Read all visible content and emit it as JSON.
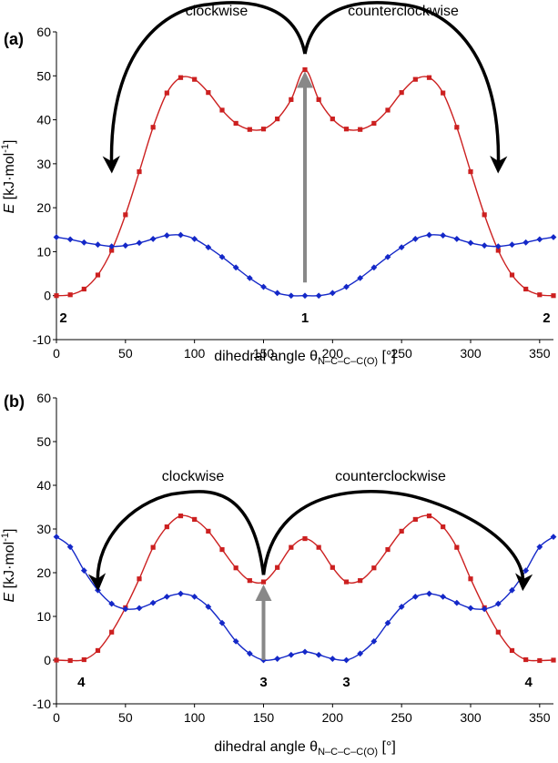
{
  "chart_data": [
    {
      "type": "line",
      "panel_label": "(a)",
      "xlabel_main": "dihedral angle θ",
      "xlabel_sub": "N–C–C–C(O)",
      "xlabel_unit": " [°]",
      "ylabel_var": "E",
      "ylabel_unit": "[kJ·mol",
      "ylabel_exp": "-1",
      "ylabel_close": "]",
      "xlim": [
        0,
        360
      ],
      "ylim": [
        -10,
        60
      ],
      "xticks": [
        0,
        50,
        100,
        150,
        200,
        250,
        300,
        350
      ],
      "yticks": [
        -10,
        0,
        10,
        20,
        30,
        40,
        50,
        60
      ],
      "x": [
        0,
        10,
        20,
        30,
        40,
        50,
        60,
        70,
        80,
        90,
        100,
        110,
        120,
        130,
        140,
        150,
        160,
        170,
        180,
        190,
        200,
        210,
        220,
        230,
        240,
        250,
        260,
        270,
        280,
        290,
        300,
        310,
        320,
        330,
        340,
        350,
        360
      ],
      "series": [
        {
          "name": "red",
          "color": "#cc2020",
          "marker": "square",
          "values": [
            0,
            0.2,
            1.5,
            4.7,
            10.3,
            18.4,
            28.2,
            38.3,
            46.1,
            49.6,
            49.2,
            46.2,
            42.2,
            39.2,
            37.8,
            37.9,
            40.2,
            44.6,
            51.4,
            44.6,
            40.2,
            37.9,
            37.8,
            39.2,
            42.2,
            46.2,
            49.2,
            49.6,
            46.1,
            38.3,
            28.2,
            18.4,
            10.3,
            4.7,
            1.5,
            0.2,
            0
          ]
        },
        {
          "name": "blue",
          "color": "#1428c8",
          "marker": "diamond",
          "values": [
            13.3,
            12.8,
            12.1,
            11.6,
            11.2,
            11.4,
            12.0,
            12.9,
            13.7,
            13.8,
            12.9,
            11.0,
            8.8,
            6.4,
            4.0,
            2.0,
            0.6,
            0.0,
            0.0,
            0.0,
            0.6,
            2.0,
            4.0,
            6.4,
            8.8,
            11.0,
            12.9,
            13.8,
            13.7,
            12.9,
            12.0,
            11.4,
            11.2,
            11.6,
            12.1,
            12.8,
            13.3
          ]
        }
      ],
      "annotations": {
        "left_direction": "clockwise",
        "right_direction": "counterclockwise",
        "structure_labels": [
          {
            "text": "2",
            "x": 5
          },
          {
            "text": "1",
            "x": 180
          },
          {
            "text": "2",
            "x": 355
          }
        ],
        "arrow_apex_x": 180,
        "arrow_apex_y": 55,
        "arrow_left_end": [
          40,
          29
        ],
        "arrow_right_end": [
          320,
          29
        ],
        "arrow_peak_y": 65,
        "gray_arrow": {
          "x": 180,
          "from_y": 3,
          "to_y": 51.5
        }
      }
    },
    {
      "type": "line",
      "panel_label": "(b)",
      "xlabel_main": "dihedral angle θ",
      "xlabel_sub": "N–C–C–C(O)",
      "xlabel_unit": " [°]",
      "ylabel_var": "E",
      "ylabel_unit": "[kJ·mol",
      "ylabel_exp": "-1",
      "ylabel_close": "]",
      "xlim": [
        0,
        360
      ],
      "ylim": [
        -10,
        60
      ],
      "xticks": [
        0,
        50,
        100,
        150,
        200,
        250,
        300,
        350
      ],
      "yticks": [
        -10,
        0,
        10,
        20,
        30,
        40,
        50,
        60
      ],
      "x": [
        0,
        10,
        20,
        30,
        40,
        50,
        60,
        70,
        80,
        90,
        100,
        110,
        120,
        130,
        140,
        150,
        160,
        170,
        180,
        190,
        200,
        210,
        220,
        230,
        240,
        250,
        260,
        270,
        280,
        290,
        300,
        310,
        320,
        330,
        340,
        350,
        360
      ],
      "series": [
        {
          "name": "red",
          "color": "#cc2020",
          "marker": "square",
          "values": [
            0,
            -0.1,
            0.1,
            2.2,
            6.4,
            12.0,
            18.6,
            25.8,
            30.5,
            33.0,
            32.2,
            29.5,
            25.3,
            21.1,
            18.2,
            17.9,
            21.2,
            25.8,
            27.8,
            25.8,
            21.2,
            17.9,
            18.2,
            21.1,
            25.3,
            29.5,
            32.2,
            33.0,
            30.5,
            25.8,
            18.6,
            12.0,
            6.4,
            2.2,
            0.1,
            -0.1,
            0
          ]
        },
        {
          "name": "blue",
          "color": "#1428c8",
          "marker": "diamond",
          "values": [
            28.2,
            25.9,
            20.5,
            16.0,
            12.9,
            11.7,
            11.9,
            13.1,
            14.5,
            15.2,
            14.5,
            12.2,
            8.5,
            4.3,
            1.5,
            0,
            0.3,
            1.2,
            1.9,
            1.2,
            0.3,
            0,
            1.5,
            4.3,
            8.5,
            12.2,
            14.5,
            15.2,
            14.5,
            13.1,
            11.9,
            11.7,
            12.9,
            16.0,
            20.5,
            25.9,
            28.2
          ]
        }
      ],
      "annotations": {
        "left_direction": "clockwise",
        "right_direction": "counterclockwise",
        "structure_labels": [
          {
            "text": "4",
            "x": 18
          },
          {
            "text": "3",
            "x": 150
          },
          {
            "text": "3",
            "x": 210
          },
          {
            "text": "4",
            "x": 342
          }
        ],
        "arrow_apex_x": 150,
        "arrow_apex_y": 19.5,
        "arrow_left_end": [
          30,
          17
        ],
        "arrow_right_end": [
          338,
          17
        ],
        "arrow_peak_y": 37,
        "gray_arrow": {
          "x": 150,
          "from_y": 0,
          "to_y": 17.8
        }
      }
    }
  ]
}
